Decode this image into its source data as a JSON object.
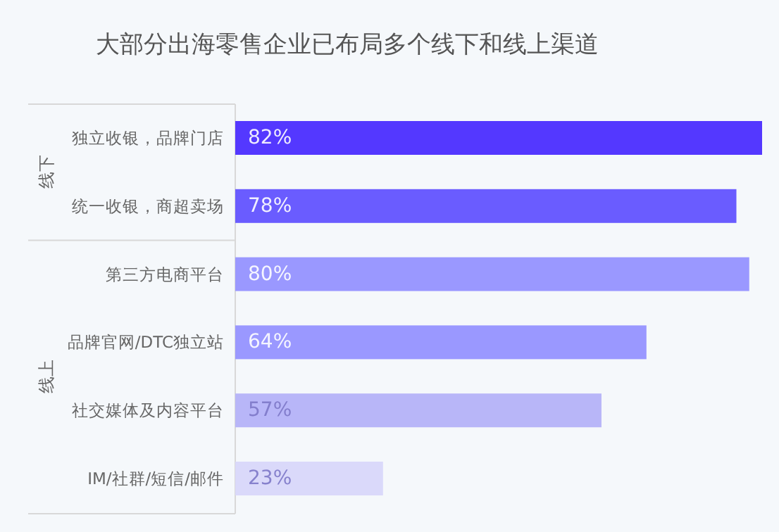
{
  "chart_data": {
    "type": "bar",
    "orientation": "horizontal",
    "title": "大部分出海零售企业已布局多个线下和线上渠道",
    "categories": [
      "独立收银，品牌门店",
      "统一收银，商超卖场",
      "第三方电商平台",
      "品牌官网/DTC独立站",
      "社交媒体及内容平台",
      "IM/社群/短信/邮件"
    ],
    "values": [
      82,
      78,
      80,
      64,
      57,
      23
    ],
    "value_labels": [
      "82%",
      "78%",
      "80%",
      "64%",
      "57%",
      "23%"
    ],
    "colors": [
      "#5438ff",
      "#6a5cff",
      "#9a98ff",
      "#9a98ff",
      "#b8b6f8",
      "#dad9fa"
    ],
    "xlim": [
      0,
      82
    ],
    "annotations": [
      "线下",
      "线上"
    ]
  }
}
